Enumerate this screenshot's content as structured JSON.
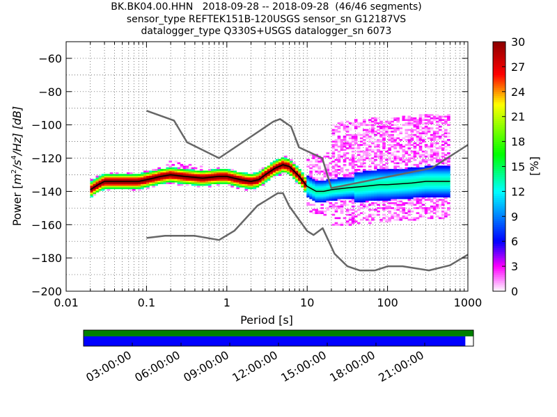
{
  "title_lines": [
    "BK.BK04.00.HHN   2018-09-28 -- 2018-09-28  (46/46 segments)",
    "sensor_type REFTEK151B-120USGS sensor_sn G12187VS",
    "datalogger_type Q330S+USGS datalogger_sn 6073"
  ],
  "colors": {
    "noise_model": "#666666",
    "mode_curve": "#000000",
    "coverage_top": "#008000",
    "coverage_bottom": "#0000ff"
  },
  "chart_data": [
    {
      "type": "heatmap",
      "x_scale": "log",
      "xlabel": "Period [s]",
      "ylabel": "Power [m²/s⁴/Hz] [dB]",
      "ylabel_parts": {
        "pre": "Power [",
        "unit": "m",
        "e1": "2",
        "mid": "/s",
        "e2": "4",
        "post": "/Hz] [dB]"
      },
      "xlim": [
        0.01,
        1000
      ],
      "ylim": [
        -200,
        -50
      ],
      "x_ticks": [
        {
          "value": 0.01,
          "label": "0.01"
        },
        {
          "value": 0.1,
          "label": "0.1"
        },
        {
          "value": 1,
          "label": "1"
        },
        {
          "value": 10,
          "label": "10"
        },
        {
          "value": 100,
          "label": "100"
        },
        {
          "value": 1000,
          "label": "1000"
        }
      ],
      "y_ticks": [
        {
          "value": -60,
          "label": "−60"
        },
        {
          "value": -80,
          "label": "−80"
        },
        {
          "value": -100,
          "label": "−100"
        },
        {
          "value": -120,
          "label": "−120"
        },
        {
          "value": -140,
          "label": "−140"
        },
        {
          "value": -160,
          "label": "−160"
        },
        {
          "value": -180,
          "label": "−180"
        },
        {
          "value": -200,
          "label": "−200"
        }
      ],
      "grid": true,
      "high_noise_model": [
        [
          0.1,
          -91.5
        ],
        [
          0.22,
          -97.4
        ],
        [
          0.32,
          -110.5
        ],
        [
          0.8,
          -120
        ],
        [
          3.8,
          -98
        ],
        [
          4.6,
          -96.5
        ],
        [
          6.3,
          -101
        ],
        [
          7.9,
          -113.5
        ],
        [
          15.4,
          -120
        ],
        [
          20,
          -138
        ],
        [
          354.8,
          -126
        ],
        [
          1000,
          -112
        ]
      ],
      "low_noise_model": [
        [
          0.1,
          -168
        ],
        [
          0.17,
          -166.7
        ],
        [
          0.4,
          -166.7
        ],
        [
          0.8,
          -169.2
        ],
        [
          1.24,
          -163.7
        ],
        [
          2.4,
          -148.6
        ],
        [
          4.3,
          -141.1
        ],
        [
          5,
          -141.1
        ],
        [
          6,
          -149
        ],
        [
          10,
          -163.8
        ],
        [
          12,
          -166.2
        ],
        [
          15.6,
          -162.1
        ],
        [
          21.9,
          -177.5
        ],
        [
          31.6,
          -185
        ],
        [
          45,
          -187.5
        ],
        [
          70,
          -187.5
        ],
        [
          101,
          -185
        ],
        [
          154,
          -185
        ],
        [
          328,
          -187.5
        ],
        [
          600,
          -184.4
        ],
        [
          1000,
          -178
        ]
      ],
      "mode_curve": [
        [
          0.02,
          -139
        ],
        [
          0.025,
          -136
        ],
        [
          0.03,
          -134
        ],
        [
          0.05,
          -134
        ],
        [
          0.08,
          -134
        ],
        [
          0.1,
          -133
        ],
        [
          0.15,
          -131
        ],
        [
          0.2,
          -130
        ],
        [
          0.3,
          -131
        ],
        [
          0.5,
          -132
        ],
        [
          0.8,
          -131
        ],
        [
          1,
          -131
        ],
        [
          1.5,
          -133
        ],
        [
          2,
          -134
        ],
        [
          2.5,
          -133
        ],
        [
          3,
          -130
        ],
        [
          4,
          -126
        ],
        [
          5,
          -124
        ],
        [
          6,
          -125
        ],
        [
          8,
          -131
        ],
        [
          10,
          -137
        ],
        [
          13,
          -140
        ],
        [
          16,
          -140
        ],
        [
          20,
          -139
        ],
        [
          30,
          -138
        ],
        [
          50,
          -137
        ],
        [
          80,
          -136
        ],
        [
          100,
          -136
        ],
        [
          200,
          -135
        ],
        [
          300,
          -134
        ],
        [
          600,
          -134
        ]
      ],
      "colorbar": {
        "label": "[%]",
        "min": 0,
        "max": 30,
        "colormap": "pqlx",
        "ticks": [
          {
            "value": 0,
            "label": "0"
          },
          {
            "value": 3,
            "label": "3"
          },
          {
            "value": 6,
            "label": "6"
          },
          {
            "value": 9,
            "label": "9"
          },
          {
            "value": 12,
            "label": "12"
          },
          {
            "value": 15,
            "label": "15"
          },
          {
            "value": 18,
            "label": "18"
          },
          {
            "value": 21,
            "label": "21"
          },
          {
            "value": 24,
            "label": "24"
          },
          {
            "value": 27,
            "label": "27"
          },
          {
            "value": 30,
            "label": "30"
          }
        ]
      }
    },
    {
      "type": "timeline",
      "description_ticks": [
        {
          "hours": 3,
          "label": "03:00:00"
        },
        {
          "hours": 6,
          "label": "06:00:00"
        },
        {
          "hours": 9,
          "label": "09:00:00"
        },
        {
          "hours": 12,
          "label": "12:00:00"
        },
        {
          "hours": 15,
          "label": "15:00:00"
        },
        {
          "hours": 18,
          "label": "18:00:00"
        },
        {
          "hours": 21,
          "label": "21:00:00"
        }
      ],
      "span_hours": [
        0,
        24
      ],
      "data_available": [
        0,
        24
      ],
      "psd_coverage": [
        0,
        23.5
      ]
    }
  ]
}
